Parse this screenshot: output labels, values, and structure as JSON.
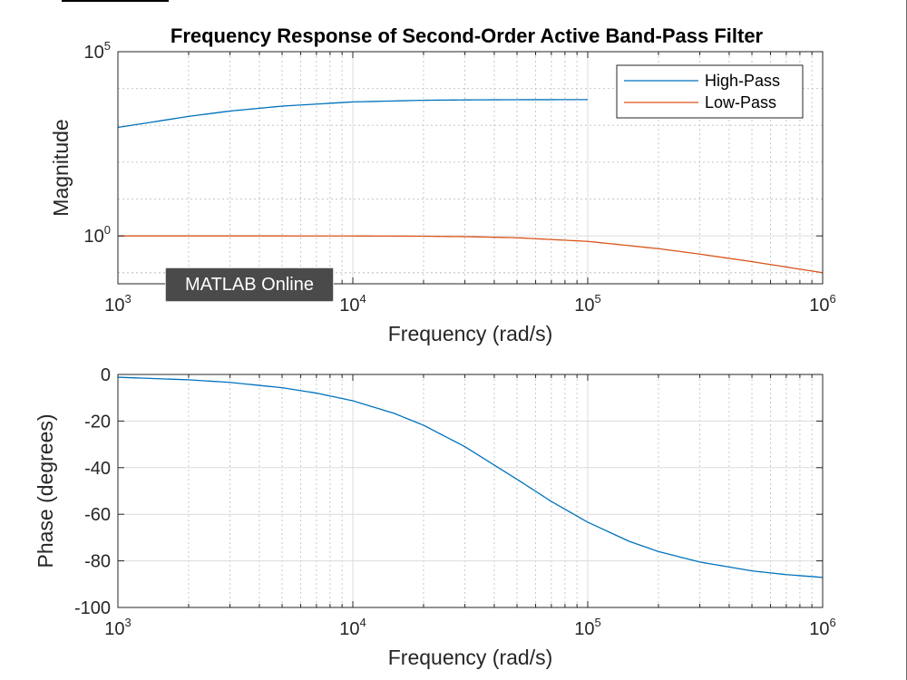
{
  "tooltip": {
    "label": "MATLAB Online"
  },
  "chart_data": [
    {
      "type": "line",
      "title": "Frequency Response of Second-Order Active Band-Pass Filter",
      "xlabel": "Frequency (rad/s)",
      "ylabel": "Magnitude",
      "xscale": "log",
      "yscale": "log",
      "xlim": [
        1000,
        1000000
      ],
      "ylim_exponent": [
        -1.3,
        5
      ],
      "grid": true,
      "legend": "top-right",
      "xticks": [
        {
          "base": "10",
          "exp": "3"
        },
        {
          "base": "10",
          "exp": "4"
        },
        {
          "base": "10",
          "exp": "5"
        },
        {
          "base": "10",
          "exp": "6"
        }
      ],
      "yticks": [
        {
          "value": 1,
          "base": "10",
          "exp": "0"
        },
        {
          "value": 100000,
          "base": "10",
          "exp": "5"
        }
      ],
      "series": [
        {
          "name": "High-Pass",
          "color": "#0072BD",
          "x": [
            1000,
            2000,
            3000,
            5000,
            10000,
            20000,
            30000,
            50000,
            100000
          ],
          "y": [
            880,
            1750,
            2450,
            3330,
            4330,
            4800,
            4910,
            4970,
            5000
          ]
        },
        {
          "name": "Low-Pass",
          "color": "#D95319",
          "x": [
            1000,
            3000,
            10000,
            20000,
            30000,
            50000,
            100000,
            200000,
            300000,
            500000,
            1000000
          ],
          "y": [
            1.0,
            1.0,
            0.995,
            0.98,
            0.955,
            0.89,
            0.71,
            0.45,
            0.32,
            0.2,
            0.1
          ]
        }
      ]
    },
    {
      "type": "line",
      "title": "",
      "xlabel": "Frequency (rad/s)",
      "ylabel": "Phase (degrees)",
      "xscale": "log",
      "xlim": [
        1000,
        1000000
      ],
      "ylim": [
        -100,
        0
      ],
      "grid": true,
      "xticks": [
        {
          "base": "10",
          "exp": "3"
        },
        {
          "base": "10",
          "exp": "4"
        },
        {
          "base": "10",
          "exp": "5"
        },
        {
          "base": "10",
          "exp": "6"
        }
      ],
      "yticks": [
        {
          "value": 0,
          "label": "0"
        },
        {
          "value": -20,
          "label": "-20"
        },
        {
          "value": -40,
          "label": "-40"
        },
        {
          "value": -60,
          "label": "-60"
        },
        {
          "value": -80,
          "label": "-80"
        },
        {
          "value": -100,
          "label": "-100"
        }
      ],
      "series": [
        {
          "name": "",
          "color": "#0072BD",
          "x": [
            1000,
            2000,
            3000,
            5000,
            7000,
            10000,
            15000,
            20000,
            30000,
            50000,
            70000,
            100000,
            150000,
            200000,
            300000,
            500000,
            700000,
            1000000
          ],
          "y": [
            -1.2,
            -2.3,
            -3.4,
            -5.7,
            -8.0,
            -11.3,
            -16.7,
            -21.8,
            -31.0,
            -45.0,
            -54.5,
            -63.4,
            -71.6,
            -76.0,
            -80.5,
            -84.3,
            -85.9,
            -87.1
          ]
        }
      ]
    }
  ]
}
